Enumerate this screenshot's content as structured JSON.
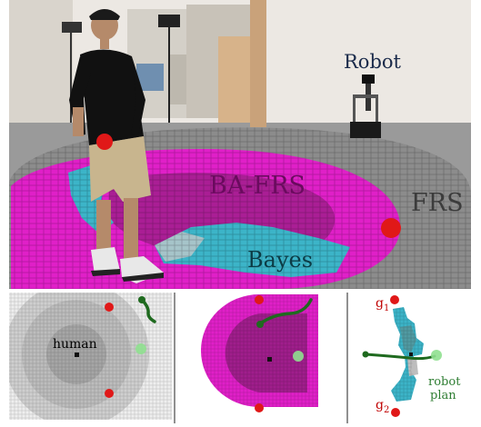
{
  "photo": {
    "labels": {
      "robot": "Robot",
      "ba_frs": "BA-FRS",
      "frs": "FRS",
      "bayes": "Bayes"
    }
  },
  "panel_left": {
    "label": "human"
  },
  "panel_right": {
    "goal_top": "g",
    "goal_top_sub": "1",
    "goal_bottom": "g",
    "goal_bottom_sub": "2",
    "robot_plan_line1": "robot",
    "robot_plan_line2": "plan"
  },
  "colors": {
    "frs_gray": "#8c8c8c",
    "ba_frs_magenta": "#e020c8",
    "ba_frs_dark": "#a01e8c",
    "bayes_teal": "#3cb4c8",
    "goal_red": "#e01818",
    "robot_plan_green": "#1f6a1f",
    "goal_text_red": "#c00000",
    "plan_text_green": "#2e7d32"
  }
}
